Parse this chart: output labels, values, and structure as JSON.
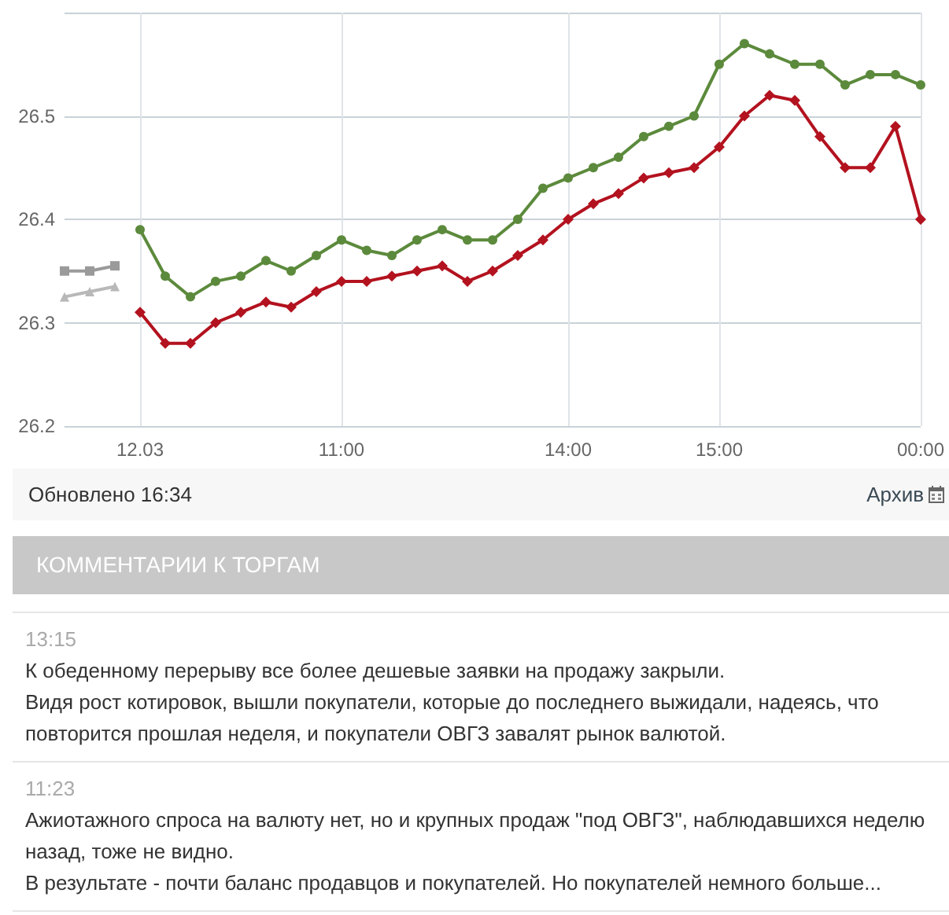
{
  "chart_data": {
    "type": "line",
    "categories": [
      null,
      null,
      null,
      "12.03",
      null,
      null,
      null,
      null,
      null,
      null,
      null,
      "11:00",
      null,
      null,
      null,
      null,
      null,
      null,
      null,
      null,
      "14:00",
      null,
      null,
      null,
      null,
      null,
      "15:00",
      null,
      null,
      null,
      null,
      null,
      null,
      null,
      "00:00"
    ],
    "series": [
      {
        "color": "#5c8a3c",
        "marker": "circle",
        "values": [
          null,
          null,
          null,
          26.39,
          26.345,
          26.325,
          26.34,
          26.345,
          26.36,
          26.35,
          26.365,
          26.38,
          26.37,
          26.365,
          26.38,
          26.39,
          26.38,
          26.38,
          26.4,
          26.43,
          26.44,
          26.45,
          26.46,
          26.48,
          26.49,
          26.5,
          26.55,
          26.57,
          26.56,
          26.55,
          26.55,
          26.53,
          26.54,
          26.54,
          26.53
        ]
      },
      {
        "color": "#b3121f",
        "marker": "diamond",
        "values": [
          null,
          null,
          null,
          26.31,
          26.28,
          26.28,
          26.3,
          26.31,
          26.32,
          26.315,
          26.33,
          26.34,
          26.34,
          26.345,
          26.35,
          26.355,
          26.34,
          26.35,
          26.365,
          26.38,
          26.4,
          26.415,
          26.425,
          26.44,
          26.445,
          26.45,
          26.47,
          26.5,
          26.52,
          26.515,
          26.48,
          26.45,
          26.45,
          26.49,
          26.4
        ]
      },
      {
        "color": "#9a9a9a",
        "marker": "square",
        "values": [
          26.35,
          26.35,
          26.355,
          null,
          null,
          null,
          null,
          null,
          null,
          null,
          null,
          null,
          null,
          null,
          null,
          null,
          null,
          null,
          null,
          null,
          null,
          null,
          null,
          null,
          null,
          null,
          null,
          null,
          null,
          null,
          null,
          null,
          null,
          null,
          null
        ]
      },
      {
        "color": "#b8b8b8",
        "marker": "triangle",
        "values": [
          26.325,
          26.33,
          26.335,
          null,
          null,
          null,
          null,
          null,
          null,
          null,
          null,
          null,
          null,
          null,
          null,
          null,
          null,
          null,
          null,
          null,
          null,
          null,
          null,
          null,
          null,
          null,
          null,
          null,
          null,
          null,
          null,
          null,
          null,
          null,
          null
        ]
      }
    ],
    "ylim": [
      26.2,
      26.6
    ],
    "yticks": [
      26.2,
      26.3,
      26.4,
      26.5,
      {
        "value": 26.6,
        "label": null
      }
    ],
    "grid": true,
    "annotations": [
      "Обновлено 16:34",
      "Архив",
      "КОММЕНТАРИИ К ТОРГАМ",
      "13:15",
      "К обеденному перерыву все более дешевые заявки на продажу закрыли.",
      "Видя рост котировок, вышли покупатели, которые до последнего выжидали, надеясь, что повторится прошлая неделя, и покупатели ОВГЗ завалят рынок валютой.",
      "11:23",
      "Ажиотажного спроса на валюту нет, но и крупных продаж \"под ОВГЗ\", наблюдавшихся неделю назад, тоже не видно.",
      "В результате - почти баланс продавцов и покупателей. Но покупателей немного больше..."
    ]
  }
}
